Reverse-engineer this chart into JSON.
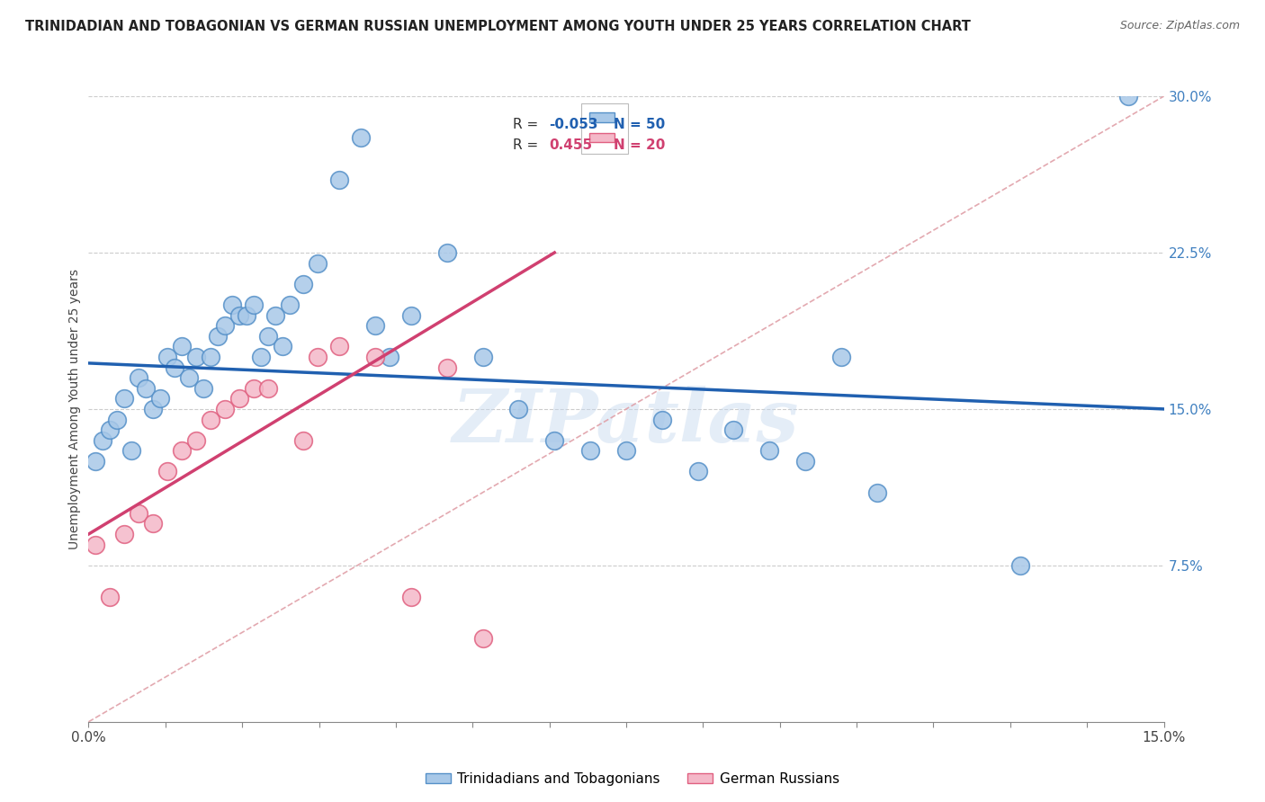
{
  "title": "TRINIDADIAN AND TOBAGONIAN VS GERMAN RUSSIAN UNEMPLOYMENT AMONG YOUTH UNDER 25 YEARS CORRELATION CHART",
  "source": "Source: ZipAtlas.com",
  "ylabel": "Unemployment Among Youth under 25 years",
  "legend_blue_label": "Trinidadians and Tobagonians",
  "legend_pink_label": "German Russians",
  "legend_blue_R": "-0.053",
  "legend_blue_N": "50",
  "legend_pink_R": "0.455",
  "legend_pink_N": "20",
  "blue_color": "#a8c8e8",
  "pink_color": "#f4b8c8",
  "blue_edge_color": "#5590c8",
  "pink_edge_color": "#e06080",
  "blue_line_color": "#2060b0",
  "pink_line_color": "#d04070",
  "dashed_line_color": "#e0a0a8",
  "title_color": "#222222",
  "source_color": "#666666",
  "right_tick_color": "#4080c0",
  "watermark": "ZIPatlas",
  "xmin": 0.0,
  "xmax": 0.15,
  "ymin": 0.0,
  "ymax": 0.3,
  "blue_scatter_x": [
    0.001,
    0.002,
    0.003,
    0.004,
    0.005,
    0.006,
    0.007,
    0.008,
    0.009,
    0.01,
    0.011,
    0.012,
    0.013,
    0.014,
    0.015,
    0.016,
    0.017,
    0.018,
    0.019,
    0.02,
    0.021,
    0.022,
    0.023,
    0.024,
    0.025,
    0.026,
    0.027,
    0.028,
    0.03,
    0.032,
    0.035,
    0.038,
    0.04,
    0.042,
    0.045,
    0.05,
    0.055,
    0.06,
    0.065,
    0.07,
    0.075,
    0.08,
    0.085,
    0.09,
    0.095,
    0.1,
    0.105,
    0.11,
    0.13,
    0.145
  ],
  "blue_scatter_y": [
    0.125,
    0.135,
    0.14,
    0.145,
    0.155,
    0.13,
    0.165,
    0.16,
    0.15,
    0.155,
    0.175,
    0.17,
    0.18,
    0.165,
    0.175,
    0.16,
    0.175,
    0.185,
    0.19,
    0.2,
    0.195,
    0.195,
    0.2,
    0.175,
    0.185,
    0.195,
    0.18,
    0.2,
    0.21,
    0.22,
    0.26,
    0.28,
    0.19,
    0.175,
    0.195,
    0.225,
    0.175,
    0.15,
    0.135,
    0.13,
    0.13,
    0.145,
    0.12,
    0.14,
    0.13,
    0.125,
    0.175,
    0.11,
    0.075,
    0.3
  ],
  "pink_scatter_x": [
    0.001,
    0.003,
    0.005,
    0.007,
    0.009,
    0.011,
    0.013,
    0.015,
    0.017,
    0.019,
    0.021,
    0.023,
    0.025,
    0.03,
    0.032,
    0.035,
    0.04,
    0.045,
    0.05,
    0.055
  ],
  "pink_scatter_y": [
    0.085,
    0.06,
    0.09,
    0.1,
    0.095,
    0.12,
    0.13,
    0.135,
    0.145,
    0.15,
    0.155,
    0.16,
    0.16,
    0.135,
    0.175,
    0.18,
    0.175,
    0.06,
    0.17,
    0.04
  ],
  "blue_line_x": [
    0.0,
    0.15
  ],
  "blue_line_y": [
    0.172,
    0.15
  ],
  "pink_line_x": [
    0.0,
    0.065
  ],
  "pink_line_y": [
    0.09,
    0.225
  ],
  "dashed_line_x": [
    0.0,
    0.15
  ],
  "dashed_line_y": [
    0.0,
    0.3
  ]
}
